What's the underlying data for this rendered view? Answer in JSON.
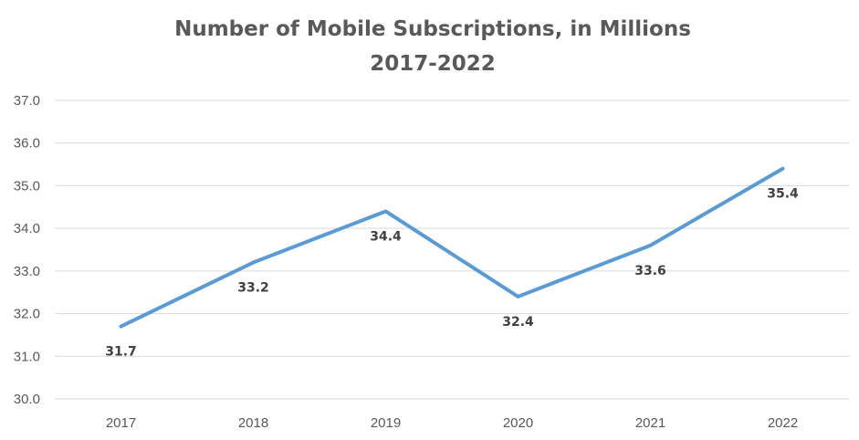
{
  "chart_data": {
    "type": "line",
    "title": "Number of Mobile Subscriptions, in Millions",
    "subtitle": "2017-2022",
    "xlabel": "",
    "ylabel": "",
    "categories": [
      "2017",
      "2018",
      "2019",
      "2020",
      "2021",
      "2022"
    ],
    "series": [
      {
        "values": [
          31.7,
          33.2,
          34.4,
          32.4,
          33.6,
          35.4
        ],
        "labels": [
          "31.7",
          "33.2",
          "34.4",
          "32.4",
          "33.6",
          "35.4"
        ],
        "color": "#5B9BD5"
      }
    ],
    "ylim": [
      30,
      37
    ],
    "yticks": [
      "30.0",
      "31.0",
      "32.0",
      "33.0",
      "34.0",
      "35.0",
      "36.0",
      "37.0"
    ],
    "grid": true,
    "legend": "none"
  }
}
